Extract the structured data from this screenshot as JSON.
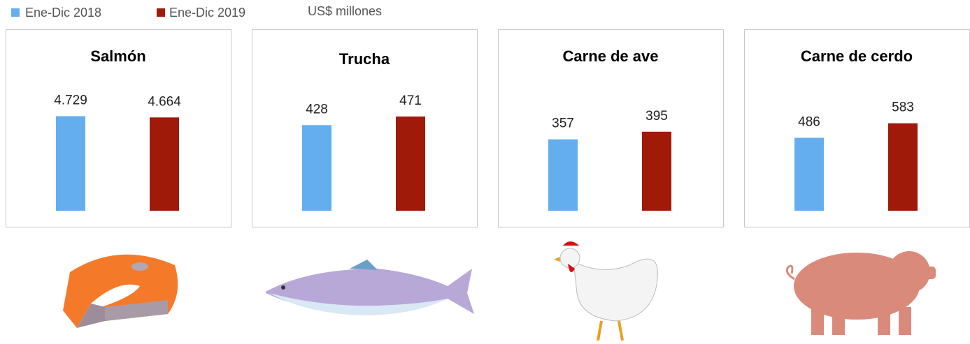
{
  "legend": {
    "series": [
      {
        "name": "Ene-Dic 2018",
        "color": "#64aef0"
      },
      {
        "name": "Ene-Dic 2019",
        "color": "#a01a0a"
      }
    ],
    "unit": "US$ millones"
  },
  "chart_data": [
    {
      "type": "bar",
      "title": "Salmón",
      "values": [
        4729,
        4664
      ],
      "value_labels": [
        "4.729",
        "4.664"
      ],
      "ylim": [
        0,
        6000
      ]
    },
    {
      "type": "bar",
      "title": "Trucha",
      "values": [
        428,
        471
      ],
      "ylim": [
        0,
        600
      ]
    },
    {
      "type": "bar",
      "title": "Carne de ave",
      "values": [
        357,
        395
      ],
      "ylim": [
        0,
        600
      ]
    },
    {
      "type": "bar",
      "title": "Carne de cerdo",
      "values": [
        486,
        583
      ],
      "ylim": [
        0,
        800
      ]
    }
  ]
}
